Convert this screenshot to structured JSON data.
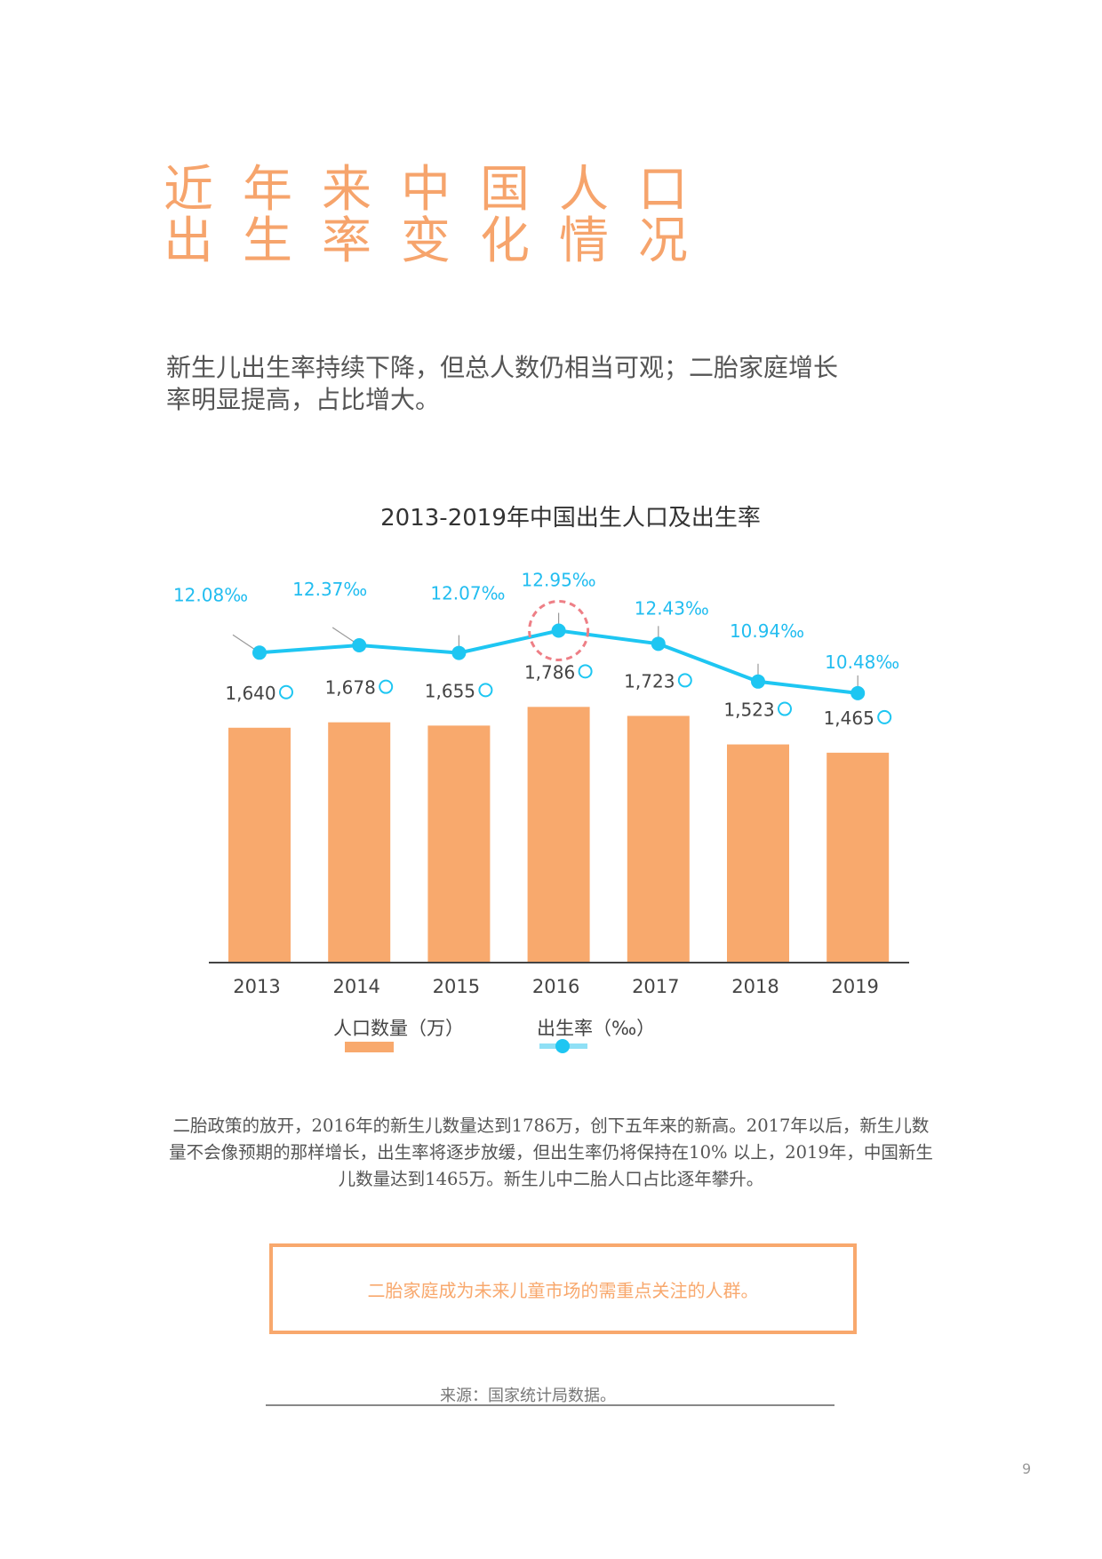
{
  "page": {
    "title_lines": [
      "近年来中国人口",
      "出生率变化情况"
    ],
    "lead": "新生儿出生率持续下降，但总人数仍相当可观；二胎家庭增长率明显提高，占比增大。",
    "paragraph": "二胎政策的放开，2016年的新生儿数量达到1786万，创下五年来的新高。2017年以后，新生儿数量不会像预期的那样增长，出生率将逐步放缓，但出生率仍将保持在10% 以上，2019年，中国新生儿数量达到1465万。新生儿中二胎人口占比逐年攀升。",
    "callout": "二胎家庭成为未来儿童市场的需重点关注的人群。",
    "source": "来源：国家统计局数据。",
    "page_number": "9"
  },
  "chart_data": {
    "type": "bar+line",
    "title": "2013-2019年中国出生人口及出生率",
    "categories": [
      "2013",
      "2014",
      "2015",
      "2016",
      "2017",
      "2018",
      "2019"
    ],
    "series": [
      {
        "name": "人口数量（万）",
        "type": "bar",
        "values": [
          1640,
          1678,
          1655,
          1786,
          1723,
          1523,
          1465
        ],
        "labels": [
          "1,640",
          "1,678",
          "1,655",
          "1,786",
          "1,723",
          "1,523",
          "1,465"
        ],
        "color": "#f8a96d"
      },
      {
        "name": "出生率（‰）",
        "type": "line",
        "values": [
          12.08,
          12.37,
          12.07,
          12.95,
          12.43,
          10.94,
          10.48
        ],
        "labels": [
          "12.08‰",
          "12.37‰",
          "12.07‰",
          "12.95‰",
          "12.43‰",
          "10.94‰",
          "10.48‰"
        ],
        "color": "#1ec6f2"
      }
    ],
    "highlight": "2016",
    "highlight_color": "#ee7f86",
    "legend_position": "bottom",
    "grid": false
  }
}
